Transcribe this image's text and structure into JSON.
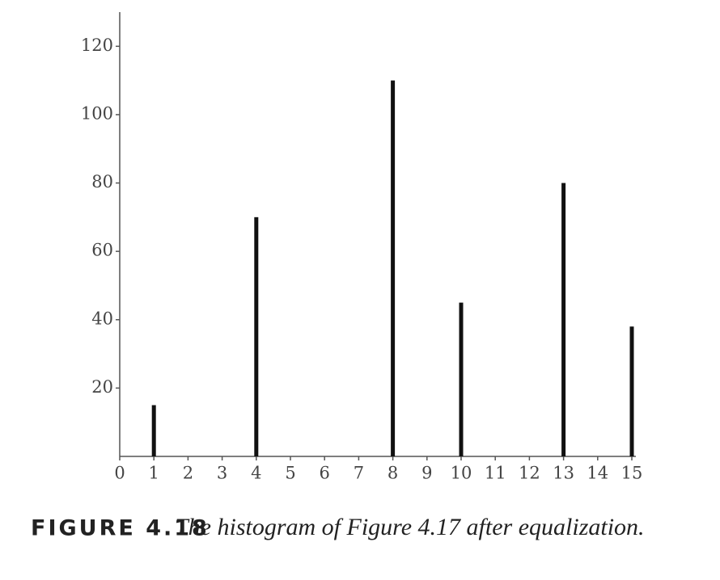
{
  "chart_data": {
    "type": "bar",
    "x": [
      1,
      4,
      8,
      10,
      13,
      15
    ],
    "values": [
      15,
      70,
      110,
      45,
      80,
      38
    ],
    "color": "#111111",
    "xlim": [
      0,
      15
    ],
    "xticks": [
      0,
      1,
      2,
      3,
      4,
      5,
      6,
      7,
      8,
      9,
      10,
      11,
      12,
      13,
      14,
      15
    ],
    "ylim": [
      0,
      130
    ],
    "yticks": [
      20,
      40,
      60,
      80,
      100,
      120
    ],
    "grid": false,
    "caption": {
      "label": "FIGURE 4.18",
      "text": "The histogram of Figure 4.17 after equalization."
    }
  }
}
